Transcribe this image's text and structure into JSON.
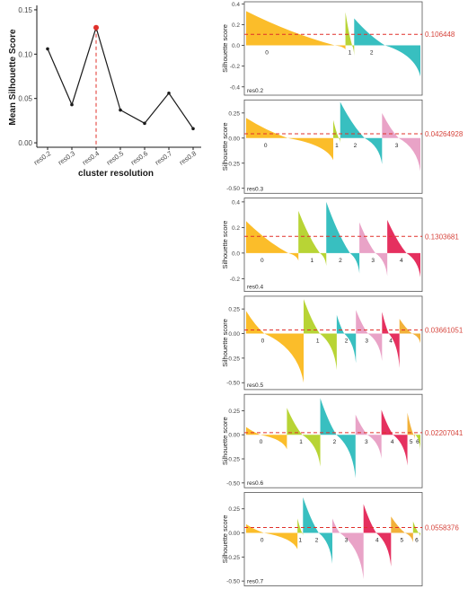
{
  "colors": {
    "line": "#1a1a1a",
    "highlight_point": "#e0302a",
    "reference_line": "#e0302a",
    "annotation": "#d6453d",
    "panel_border": "#555555",
    "axis_text": "#444444",
    "cluster_palette": [
      "#fbbd2a",
      "#b8d435",
      "#38bfc0",
      "#e9a3c7",
      "#e5305f",
      "#f2b13a",
      "#b8d435"
    ]
  },
  "chart_data": [
    {
      "type": "line",
      "title": "",
      "xlabel": "cluster resolution",
      "ylabel": "Mean Silhouette Score",
      "categories": [
        "res0.2",
        "res0.3",
        "res0.4",
        "res0.5",
        "res0.6",
        "res0.7",
        "res0.8"
      ],
      "values": [
        0.106,
        0.043,
        0.13,
        0.037,
        0.022,
        0.056,
        0.016
      ],
      "highlight_index": 2,
      "yticks": [
        "0.00",
        "0.05",
        "0.10",
        "0.15"
      ],
      "ylim": [
        -0.005,
        0.155
      ],
      "grid": false
    },
    {
      "type": "area",
      "label": "res0.2",
      "ylabel": "Silhouette score",
      "yticks": [
        "0.4",
        "0.2",
        "0.0",
        "-0.2",
        "-0.4"
      ],
      "ylim": [
        -0.48,
        0.42
      ],
      "mean": 0.106448,
      "annotation": "0.106448",
      "clusters": [
        {
          "id": "0",
          "weight": 0.57,
          "max": 0.33,
          "min": -0.04
        },
        {
          "id": "1",
          "weight": 0.05,
          "max": 0.32,
          "min": -0.1
        },
        {
          "id": "2",
          "weight": 0.38,
          "max": 0.26,
          "min": -0.3
        }
      ]
    },
    {
      "type": "area",
      "label": "res0.3",
      "ylabel": "Silhouette score",
      "yticks": [
        "0.25",
        "0.00",
        "-0.25",
        "-0.50"
      ],
      "ylim": [
        -0.55,
        0.38
      ],
      "mean": 0.04264928,
      "annotation": "0.04264928",
      "clusters": [
        {
          "id": "0",
          "weight": 0.5,
          "max": 0.2,
          "min": -0.22
        },
        {
          "id": "1",
          "weight": 0.04,
          "max": 0.18,
          "min": -0.05
        },
        {
          "id": "2",
          "weight": 0.24,
          "max": 0.36,
          "min": -0.26
        },
        {
          "id": "3",
          "weight": 0.22,
          "max": 0.25,
          "min": -0.33
        }
      ]
    },
    {
      "type": "area",
      "label": "res0.4",
      "ylabel": "Silhouette score",
      "yticks": [
        "0.4",
        "0.2",
        "0.0",
        "-0.2"
      ],
      "ylim": [
        -0.3,
        0.43
      ],
      "mean": 0.1303681,
      "annotation": "0.1303681",
      "clusters": [
        {
          "id": "0",
          "weight": 0.3,
          "max": 0.25,
          "min": -0.06
        },
        {
          "id": "1",
          "weight": 0.16,
          "max": 0.33,
          "min": -0.1
        },
        {
          "id": "2",
          "weight": 0.19,
          "max": 0.4,
          "min": -0.16
        },
        {
          "id": "3",
          "weight": 0.16,
          "max": 0.24,
          "min": -0.18
        },
        {
          "id": "4",
          "weight": 0.19,
          "max": 0.26,
          "min": -0.19
        }
      ]
    },
    {
      "type": "area",
      "label": "res0.5",
      "ylabel": "Silhouette score",
      "yticks": [
        "0.25",
        "0.00",
        "-0.25",
        "-0.50"
      ],
      "ylim": [
        -0.57,
        0.38
      ],
      "mean": 0.03661051,
      "annotation": "0.03661051",
      "clusters": [
        {
          "id": "0",
          "weight": 0.33,
          "max": 0.23,
          "min": -0.5
        },
        {
          "id": "1",
          "weight": 0.19,
          "max": 0.35,
          "min": -0.37
        },
        {
          "id": "2",
          "weight": 0.11,
          "max": 0.19,
          "min": -0.3
        },
        {
          "id": "3",
          "weight": 0.15,
          "max": 0.24,
          "min": -0.28
        },
        {
          "id": "4",
          "weight": 0.1,
          "max": 0.22,
          "min": -0.35
        },
        {
          "id": "",
          "weight": 0.12,
          "max": 0.15,
          "min": -0.1
        }
      ]
    },
    {
      "type": "area",
      "label": "res0.6",
      "ylabel": "Silhouette score",
      "yticks": [
        "0.25",
        "0.00",
        "-0.25",
        "-0.50"
      ],
      "ylim": [
        -0.55,
        0.42
      ],
      "mean": 0.02207041,
      "annotation": "0.02207041",
      "clusters": [
        {
          "id": "0",
          "weight": 0.22,
          "max": 0.08,
          "min": -0.15
        },
        {
          "id": "1",
          "weight": 0.18,
          "max": 0.28,
          "min": -0.33
        },
        {
          "id": "2",
          "weight": 0.19,
          "max": 0.38,
          "min": -0.45
        },
        {
          "id": "3",
          "weight": 0.14,
          "max": 0.21,
          "min": -0.25
        },
        {
          "id": "4",
          "weight": 0.14,
          "max": 0.26,
          "min": -0.32
        },
        {
          "id": "5",
          "weight": 0.04,
          "max": 0.23,
          "min": -0.05
        },
        {
          "id": "6",
          "weight": 0.03,
          "max": 0.02,
          "min": -0.16
        }
      ]
    },
    {
      "type": "area",
      "label": "res0.7",
      "ylabel": "Silhouette score",
      "yticks": [
        "0.25",
        "0.00",
        "-0.25",
        "-0.50"
      ],
      "ylim": [
        -0.55,
        0.42
      ],
      "mean": 0.0558376,
      "annotation": "0.0558376",
      "clusters": [
        {
          "id": "0",
          "weight": 0.28,
          "max": 0.09,
          "min": -0.17
        },
        {
          "id": "1",
          "weight": 0.03,
          "max": 0.15,
          "min": -0.03
        },
        {
          "id": "2",
          "weight": 0.16,
          "max": 0.37,
          "min": -0.32
        },
        {
          "id": "3",
          "weight": 0.17,
          "max": 0.15,
          "min": -0.48
        },
        {
          "id": "4",
          "weight": 0.15,
          "max": 0.3,
          "min": -0.35
        },
        {
          "id": "5",
          "weight": 0.12,
          "max": 0.17,
          "min": -0.1
        },
        {
          "id": "6",
          "weight": 0.04,
          "max": 0.12,
          "min": -0.04
        }
      ]
    }
  ]
}
